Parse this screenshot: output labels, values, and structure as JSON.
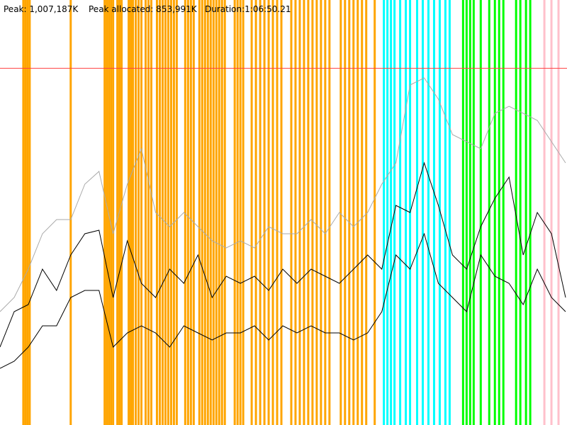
{
  "header": {
    "peak": "Peak: 1,007,187K",
    "peak_allocated": "Peak allocated: 853,991K",
    "duration": "Duration:1:06:50.21"
  },
  "chart_data": {
    "type": "line",
    "xlim": [
      0,
      4010
    ],
    "ylim": [
      0,
      1200000
    ],
    "reference_line": {
      "value": 1007187,
      "color": "#ff4040"
    },
    "events": [
      {
        "color": "#ffa500",
        "x": [
          165,
          180,
          195,
          210,
          500,
          740,
          755,
          770,
          785,
          800,
          830,
          845,
          860,
          910,
          925,
          940,
          960,
          980,
          1000,
          1030,
          1050,
          1070,
          1110,
          1130,
          1150,
          1170,
          1190,
          1210,
          1230,
          1250,
          1310,
          1330,
          1350,
          1370,
          1410,
          1430,
          1450,
          1470,
          1490,
          1510,
          1530,
          1550,
          1570,
          1590,
          1660,
          1680,
          1700,
          1720,
          1780,
          1810,
          1840,
          1870,
          1900,
          1930,
          1960,
          1990,
          2060,
          2090,
          2120,
          2150,
          2180,
          2210,
          2240,
          2270,
          2300,
          2330,
          2410,
          2440,
          2470,
          2500,
          2530,
          2560,
          2590,
          2650
        ]
      },
      {
        "color": "#00ffff",
        "x": [
          2715,
          2740,
          2765,
          2790,
          2830,
          2870,
          2900,
          2950,
          2990,
          3030,
          3070,
          3110,
          3150,
          3180
        ]
      },
      {
        "color": "#00ff00",
        "x": [
          3275,
          3300,
          3325,
          3350,
          3400,
          3460,
          3500,
          3530,
          3560,
          3650,
          3680,
          3720,
          3750
        ]
      },
      {
        "color": "#ffc0cb",
        "x": [
          3850,
          3900,
          3950
        ]
      }
    ],
    "x": [
      0,
      100,
      200,
      300,
      400,
      500,
      600,
      700,
      800,
      900,
      1000,
      1100,
      1200,
      1300,
      1400,
      1500,
      1600,
      1700,
      1800,
      1900,
      2000,
      2100,
      2200,
      2300,
      2400,
      2500,
      2600,
      2700,
      2800,
      2900,
      3000,
      3100,
      3200,
      3300,
      3400,
      3500,
      3600,
      3700,
      3800,
      3900,
      4000
    ],
    "series": [
      {
        "color": "#aaaaaa",
        "values": [
          320000,
          360000,
          440000,
          540000,
          580000,
          580000,
          680000,
          716000,
          540000,
          680000,
          780000,
          600000,
          560000,
          600000,
          560000,
          520000,
          500000,
          520000,
          500000,
          560000,
          540000,
          540000,
          580000,
          540000,
          600000,
          560000,
          600000,
          680000,
          740000,
          960000,
          980000,
          920000,
          820000,
          800000,
          780000,
          880000,
          900000,
          880000,
          860000,
          800000,
          740000
        ]
      },
      {
        "color": "#000000",
        "values": [
          220000,
          320000,
          340000,
          440000,
          380000,
          480000,
          540000,
          550000,
          360000,
          520000,
          400000,
          360000,
          440000,
          400000,
          480000,
          360000,
          420000,
          400000,
          420000,
          380000,
          440000,
          400000,
          440000,
          420000,
          400000,
          440000,
          480000,
          440000,
          620000,
          600000,
          740000,
          620000,
          480000,
          440000,
          560000,
          640000,
          700000,
          480000,
          600000,
          540000,
          360000
        ]
      },
      {
        "color": "#000000",
        "values": [
          160000,
          180000,
          220000,
          280000,
          280000,
          360000,
          380000,
          380000,
          220000,
          260000,
          280000,
          260000,
          220000,
          280000,
          260000,
          240000,
          260000,
          260000,
          280000,
          240000,
          280000,
          260000,
          280000,
          260000,
          260000,
          240000,
          260000,
          320000,
          480000,
          440000,
          540000,
          400000,
          360000,
          320000,
          480000,
          420000,
          400000,
          340000,
          440000,
          360000,
          320000
        ]
      }
    ]
  }
}
